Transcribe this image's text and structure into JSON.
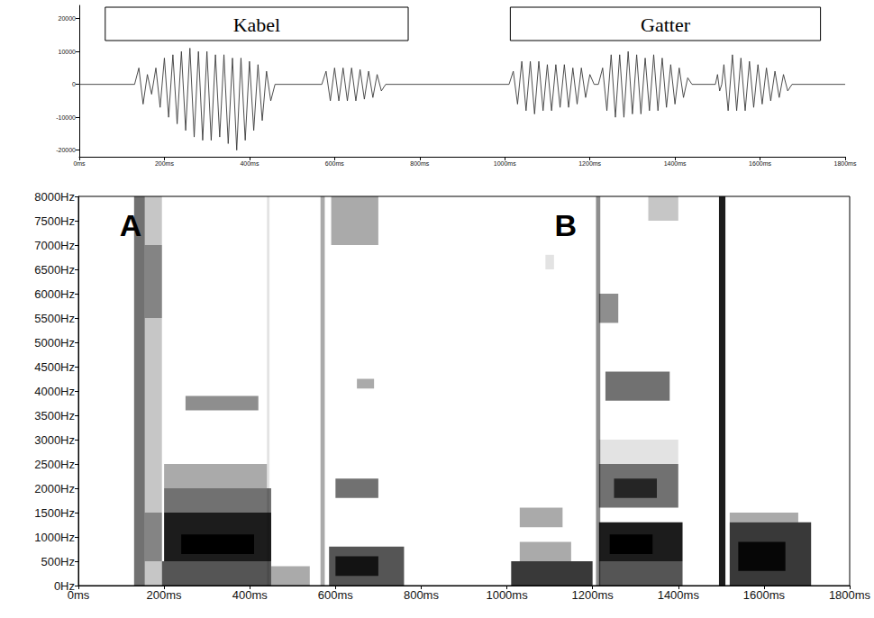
{
  "chart_data": [
    {
      "type": "line",
      "color": "#3a3a3a",
      "grid": false,
      "xlim": [
        0,
        1800
      ],
      "ylim": [
        -22000,
        24000
      ],
      "xticks": [
        {
          "value": 0,
          "label": "0ms"
        },
        {
          "value": 200,
          "label": "200ms"
        },
        {
          "value": 400,
          "label": "400ms"
        },
        {
          "value": 600,
          "label": "600ms"
        },
        {
          "value": 800,
          "label": "800ms"
        },
        {
          "value": 1000,
          "label": "1000ms"
        },
        {
          "value": 1200,
          "label": "1200ms"
        },
        {
          "value": 1400,
          "label": "1400ms"
        },
        {
          "value": 1600,
          "label": "1600ms"
        },
        {
          "value": 1800,
          "label": "1800ms"
        }
      ],
      "yticks": [
        -20000,
        -10000,
        0,
        10000,
        20000
      ],
      "segments": [
        {
          "text": "Kabel",
          "start": 61,
          "end": 773
        },
        {
          "text": "Gatter",
          "start": 1013,
          "end": 1742
        }
      ],
      "x": [
        0,
        130,
        140,
        150,
        160,
        170,
        180,
        190,
        200,
        210,
        220,
        230,
        240,
        250,
        260,
        270,
        280,
        290,
        300,
        310,
        320,
        330,
        340,
        350,
        360,
        370,
        380,
        390,
        400,
        410,
        420,
        430,
        440,
        450,
        460,
        570,
        580,
        590,
        600,
        610,
        620,
        630,
        640,
        650,
        660,
        670,
        680,
        690,
        700,
        710,
        720,
        1010,
        1020,
        1030,
        1040,
        1050,
        1060,
        1070,
        1080,
        1090,
        1100,
        1110,
        1120,
        1130,
        1140,
        1150,
        1160,
        1170,
        1180,
        1190,
        1200,
        1210,
        1220,
        1230,
        1240,
        1250,
        1260,
        1270,
        1280,
        1290,
        1300,
        1310,
        1320,
        1330,
        1340,
        1350,
        1360,
        1370,
        1380,
        1390,
        1400,
        1410,
        1420,
        1430,
        1440,
        1495,
        1500,
        1505,
        1510,
        1515,
        1525,
        1535,
        1545,
        1555,
        1565,
        1575,
        1585,
        1595,
        1605,
        1615,
        1625,
        1635,
        1645,
        1655,
        1665,
        1675,
        1800
      ],
      "values": [
        0,
        0,
        5000,
        -6000,
        3000,
        -3000,
        5000,
        -7000,
        8000,
        -10000,
        9000,
        -12000,
        10000,
        -14000,
        11000,
        -16000,
        10000,
        -17000,
        10000,
        -17000,
        9000,
        -16000,
        9000,
        -18000,
        8000,
        -20000,
        8000,
        -17000,
        7000,
        -14000,
        6000,
        -11000,
        4000,
        -5000,
        0,
        0,
        4000,
        -5000,
        5000,
        -5000,
        5000,
        -5000,
        5000,
        -5000,
        4500,
        -4500,
        4000,
        -4000,
        3000,
        -2000,
        0,
        0,
        4000,
        -6000,
        7000,
        -8000,
        7000,
        -9000,
        7000,
        -8000,
        6000,
        -8000,
        6000,
        -7000,
        6000,
        -7000,
        5000,
        -6000,
        5000,
        -4000,
        3000,
        0,
        0,
        5000,
        -8000,
        9000,
        -10000,
        9000,
        -10000,
        10000,
        -9000,
        9000,
        -9000,
        8000,
        -8000,
        9000,
        -8000,
        8000,
        -7000,
        6000,
        -6000,
        5000,
        -4000,
        2000,
        0,
        0,
        3000,
        -2000,
        0,
        6000,
        -8000,
        9000,
        -8000,
        8000,
        -8000,
        7000,
        -7000,
        6000,
        -6000,
        5000,
        -5000,
        4000,
        -4000,
        3000,
        -2000,
        0,
        0
      ]
    },
    {
      "type": "heatmap",
      "color": "#000000",
      "grid": false,
      "xlim": [
        0,
        1800
      ],
      "ylim": [
        0,
        8000
      ],
      "zlim": [
        0,
        9
      ],
      "xticks": [
        {
          "value": 0,
          "label": "0ms"
        },
        {
          "value": 200,
          "label": "200ms"
        },
        {
          "value": 400,
          "label": "400ms"
        },
        {
          "value": 600,
          "label": "600ms"
        },
        {
          "value": 800,
          "label": "800ms"
        },
        {
          "value": 1000,
          "label": "1000ms"
        },
        {
          "value": 1200,
          "label": "1200ms"
        },
        {
          "value": 1400,
          "label": "1400ms"
        },
        {
          "value": 1600,
          "label": "1600ms"
        },
        {
          "value": 1800,
          "label": "1800ms"
        }
      ],
      "yticks": [
        {
          "value": 0,
          "label": "0Hz"
        },
        {
          "value": 500,
          "label": "500Hz"
        },
        {
          "value": 1000,
          "label": "1000Hz"
        },
        {
          "value": 1500,
          "label": "1500Hz"
        },
        {
          "value": 2000,
          "label": "2000Hz"
        },
        {
          "value": 2500,
          "label": "2500Hz"
        },
        {
          "value": 3000,
          "label": "3000Hz"
        },
        {
          "value": 3500,
          "label": "3500Hz"
        },
        {
          "value": 4000,
          "label": "4000Hz"
        },
        {
          "value": 4500,
          "label": "4500Hz"
        },
        {
          "value": 5000,
          "label": "5000Hz"
        },
        {
          "value": 5500,
          "label": "5500Hz"
        },
        {
          "value": 6000,
          "label": "6000Hz"
        },
        {
          "value": 6500,
          "label": "6500Hz"
        },
        {
          "value": 7000,
          "label": "7000Hz"
        },
        {
          "value": 7500,
          "label": "7500Hz"
        },
        {
          "value": 8000,
          "label": "8000Hz"
        }
      ],
      "annotations": [
        {
          "text": "A",
          "x": 122,
          "y": 7400
        },
        {
          "text": "B",
          "x": 1137,
          "y": 7400
        }
      ],
      "cells": [
        [
          130,
          155,
          0,
          8000,
          5
        ],
        [
          155,
          195,
          0,
          8000,
          2
        ],
        [
          155,
          195,
          500,
          1500,
          3
        ],
        [
          155,
          195,
          5500,
          7000,
          3
        ],
        [
          195,
          450,
          0,
          500,
          6
        ],
        [
          200,
          450,
          500,
          1500,
          8
        ],
        [
          240,
          410,
          650,
          1050,
          9
        ],
        [
          200,
          450,
          1500,
          2000,
          5
        ],
        [
          200,
          440,
          2000,
          2500,
          3
        ],
        [
          250,
          420,
          3600,
          3900,
          4
        ],
        [
          440,
          446,
          0,
          8000,
          1
        ],
        [
          450,
          540,
          0,
          400,
          3
        ],
        [
          565,
          575,
          0,
          8000,
          3
        ],
        [
          585,
          760,
          0,
          800,
          6
        ],
        [
          600,
          700,
          200,
          600,
          7
        ],
        [
          600,
          700,
          1800,
          2200,
          5
        ],
        [
          650,
          690,
          4050,
          4250,
          3
        ],
        [
          590,
          700,
          7000,
          8000,
          3
        ],
        [
          1010,
          1200,
          0,
          500,
          7
        ],
        [
          1030,
          1150,
          500,
          900,
          3
        ],
        [
          1030,
          1130,
          1200,
          1600,
          3
        ],
        [
          1090,
          1110,
          6500,
          6800,
          1
        ],
        [
          1208,
          1218,
          0,
          8000,
          4
        ],
        [
          1215,
          1410,
          0,
          500,
          6
        ],
        [
          1215,
          1410,
          500,
          1300,
          8
        ],
        [
          1240,
          1340,
          650,
          1050,
          9
        ],
        [
          1215,
          1400,
          1600,
          2500,
          5
        ],
        [
          1250,
          1350,
          1800,
          2200,
          6
        ],
        [
          1230,
          1380,
          3800,
          4400,
          5
        ],
        [
          1215,
          1260,
          5400,
          6000,
          4
        ],
        [
          1215,
          1400,
          2500,
          3000,
          1
        ],
        [
          1330,
          1400,
          7500,
          8000,
          2
        ],
        [
          1495,
          1510,
          0,
          8000,
          8
        ],
        [
          1520,
          1710,
          0,
          1300,
          7
        ],
        [
          1540,
          1650,
          300,
          900,
          8
        ],
        [
          1520,
          1680,
          1300,
          1500,
          3
        ]
      ]
    }
  ]
}
